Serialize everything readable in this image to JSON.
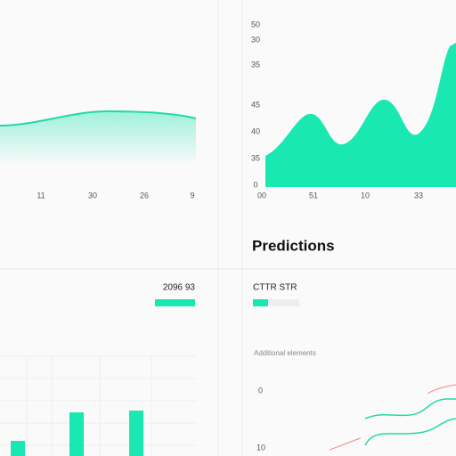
{
  "left_chart": {
    "x_labels": [
      "11",
      "30",
      "26",
      "9"
    ]
  },
  "right_chart": {
    "y_labels": [
      "50",
      "30",
      "35",
      "45",
      "40",
      "35",
      "0"
    ],
    "x_labels": [
      "00",
      "51",
      "10",
      "33"
    ]
  },
  "predictions": {
    "title": "Predictions",
    "left_value": "2096 93",
    "right_label": "CTTR STR",
    "note": "Additional elements",
    "axis_labels": [
      "0",
      "10"
    ]
  }
}
